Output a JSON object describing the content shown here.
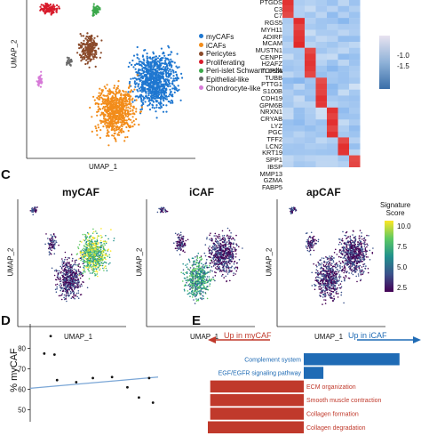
{
  "panels": {
    "top_left": {
      "xlabel": "UMAP_1",
      "ylabel": "UMAP_2",
      "legend": [
        {
          "label": "myCAFs",
          "color": "#1f77d0"
        },
        {
          "label": "iCAFs",
          "color": "#f28c1a"
        },
        {
          "label": "Pericytes",
          "color": "#8a4a2a"
        },
        {
          "label": "Proliferating",
          "color": "#d81b2b"
        },
        {
          "label": "Peri-islet Schwann cells",
          "color": "#3aa84a"
        },
        {
          "label": "Epithelial-like",
          "color": "#6b6b6b"
        },
        {
          "label": "Chondrocyte-like",
          "color": "#d77ad8"
        }
      ]
    },
    "heatmap": {
      "genes": [
        "PTGDS",
        "C3",
        "C7",
        "RGS5",
        "MYH11",
        "ADIRF",
        "MCAM",
        "MUSTN1",
        "CENPF",
        "H2AFZ",
        "TOP2A",
        "TUBB",
        "PTTG1",
        "S100B",
        "CDH19",
        "GPM6B",
        "NRXN1",
        "CRYAB",
        "LYZ",
        "PGC",
        "TFF2",
        "LCN2",
        "KRT19",
        "SPP1",
        "IBSP",
        "MMP13",
        "GZMA",
        "FABP5"
      ],
      "colorbar_ticks": [
        "-1.0",
        "-1.5"
      ]
    },
    "C": {
      "letter": "C",
      "subplots": [
        {
          "title": "myCAF",
          "xlabel": "UMAP_1",
          "ylabel": "UMAP_2"
        },
        {
          "title": "iCAF",
          "xlabel": "UMAP_1",
          "ylabel": "UMAP_2"
        },
        {
          "title": "apCAF",
          "xlabel": "UMAP_1",
          "ylabel": "UMAP_2"
        }
      ],
      "colorbar": {
        "title_line1": "Signature",
        "title_line2": "Score",
        "ticks": [
          "10.0",
          "7.5",
          "5.0",
          "2.5"
        ]
      }
    },
    "D": {
      "letter": "D",
      "ylabel": "% myCAF"
    },
    "E": {
      "letter": "E",
      "left_label": "Up in myCAF",
      "right_label": "Up in iCAF"
    }
  },
  "chart_data": [
    {
      "type": "scatter",
      "panel": "D",
      "ylabel": "% myCAF",
      "yticks": [
        80,
        70,
        60,
        50
      ],
      "ylim": [
        45,
        92
      ],
      "xlim": [
        0,
        10
      ],
      "x": [
        1.1,
        1.6,
        1.9,
        2.1,
        3.6,
        4.9,
        6.4,
        7.6,
        8.5,
        9.3,
        9.6
      ],
      "y": [
        77.5,
        86,
        77,
        64.5,
        63.5,
        65.5,
        66,
        61,
        56,
        65.5,
        53.5
      ],
      "trend_line": {
        "x": [
          0,
          10
        ],
        "y": [
          60.5,
          66
        ]
      }
    },
    {
      "type": "bar",
      "panel": "E",
      "orientation": "horizontal",
      "categories": [
        "Complement system",
        "EGF/EGFR signaling pathway",
        "ECM organization",
        "Smooth muscle contraction",
        "Collagen formation",
        "Collagen degradation"
      ],
      "values": [
        4.4,
        0.9,
        -4.3,
        -4.3,
        -4.3,
        -4.5
      ],
      "colors": [
        "#1f6bb5",
        "#1f6bb5",
        "#c0392b",
        "#c0392b",
        "#c0392b",
        "#c0392b"
      ]
    }
  ]
}
